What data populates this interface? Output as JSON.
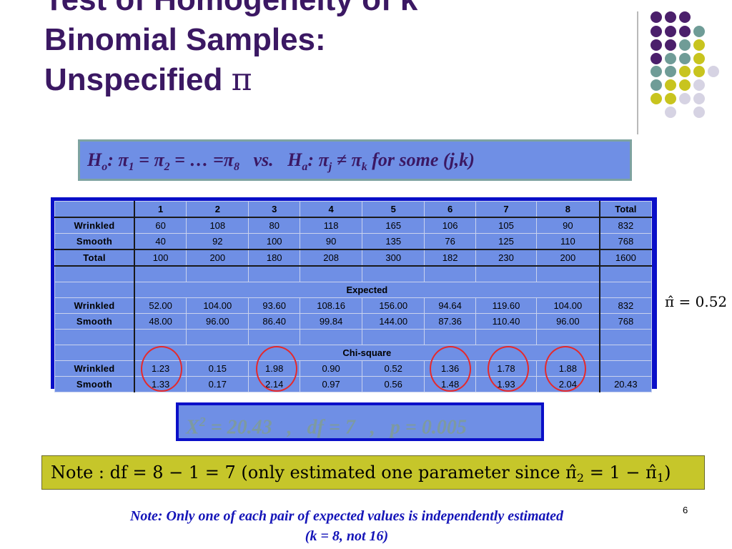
{
  "title": {
    "line1": "Test of Homogeneity of k",
    "line2": "Binomial Samples:",
    "line3": "Unspecified",
    "symbol": "π"
  },
  "hypothesis": {
    "H": "H",
    "o": "o",
    "colon": ":",
    "pi": "π",
    "s1": "1",
    "eq1": " = ",
    "s2": "2",
    "eq2": " = … =",
    "s8": "8",
    "vs": "vs.",
    "a": "a",
    "j": "j",
    "ne": " ≠ ",
    "k": "k",
    "tail": " for some (j,k)"
  },
  "table": {
    "columns": [
      "",
      "1",
      "2",
      "3",
      "4",
      "5",
      "6",
      "7",
      "8",
      "Total"
    ],
    "observed": [
      [
        "Wrinkled",
        "60",
        "108",
        "80",
        "118",
        "165",
        "106",
        "105",
        "90",
        "832"
      ],
      [
        "Smooth",
        "40",
        "92",
        "100",
        "90",
        "135",
        "76",
        "125",
        "110",
        "768"
      ],
      [
        "Total",
        "100",
        "200",
        "180",
        "208",
        "300",
        "182",
        "230",
        "200",
        "1600"
      ]
    ],
    "expected_label": "Expected",
    "expected": [
      [
        "Wrinkled",
        "52.00",
        "104.00",
        "93.60",
        "108.16",
        "156.00",
        "94.64",
        "119.60",
        "104.00",
        "832"
      ],
      [
        "Smooth",
        "48.00",
        "96.00",
        "86.40",
        "99.84",
        "144.00",
        "87.36",
        "110.40",
        "96.00",
        "768"
      ]
    ],
    "chisq_label": "Chi-square",
    "chisq": [
      [
        "Wrinkled",
        "1.23",
        "0.15",
        "1.98",
        "0.90",
        "0.52",
        "1.36",
        "1.78",
        "1.88",
        ""
      ],
      [
        "Smooth",
        "1.33",
        "0.17",
        "2.14",
        "0.97",
        "0.56",
        "1.48",
        "1.93",
        "2.04",
        "20.43"
      ]
    ]
  },
  "pi_hat": "π̂ = 0.52",
  "statistic": {
    "X": "X",
    "sup": "2",
    "rest": " = 20.43   ,   df = 7   ,   p = 0.005"
  },
  "note": {
    "pre": "Note : df  = 8 − 1 = 7 (only estimated one parameter since π̂",
    "sub2": "2",
    "mid": " = 1 − π̂",
    "sub1": "1",
    "post": ")"
  },
  "footnote": {
    "line1": "Note: Only one of each pair of expected values is independently estimated",
    "line2": "(k = 8, not 16)"
  },
  "page_number": "6",
  "colors": {
    "title": "#3b1863",
    "panel_blue": "#6f8fe5",
    "table_border": "#0a0fc8",
    "note_bg": "#c6c62a",
    "circle": "#e5292b",
    "dot_purple": "#4b1f6b",
    "dot_teal": "#6f9c97",
    "dot_yellow": "#c8c41e",
    "dot_lavender": "#d6d3e3"
  }
}
